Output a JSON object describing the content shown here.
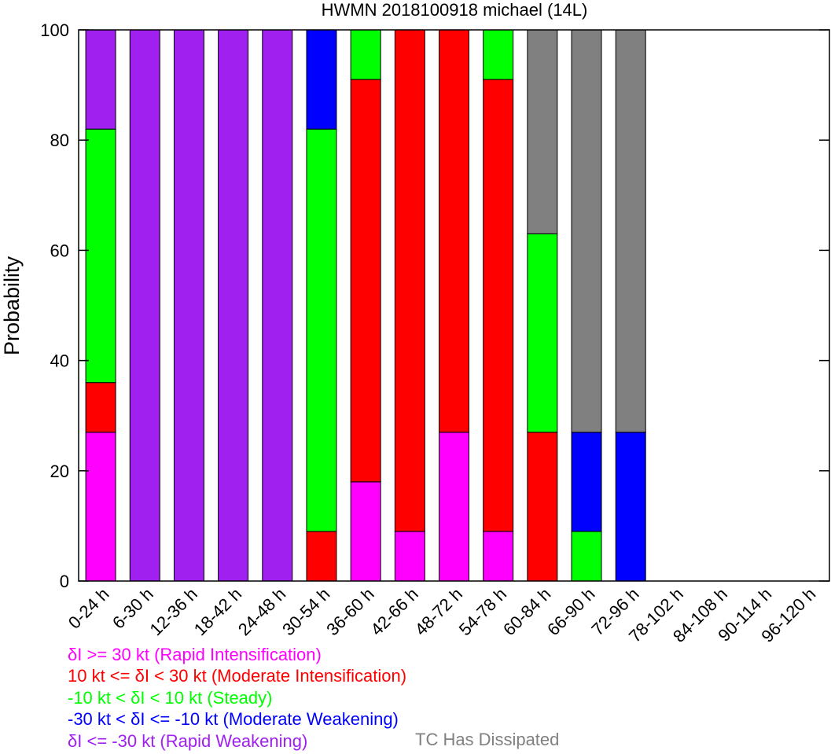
{
  "chart_data": {
    "type": "bar",
    "stacked": true,
    "title": "HWMN 2018100918 michael (14L)",
    "ylabel": "Probability",
    "xlabel": "",
    "ylim": [
      0,
      100
    ],
    "yticks": [
      0,
      20,
      40,
      60,
      80,
      100
    ],
    "grid": false,
    "categories": [
      "0-24 h",
      "6-30 h",
      "12-36 h",
      "18-42 h",
      "24-48 h",
      "30-54 h",
      "36-60 h",
      "42-66 h",
      "48-72 h",
      "54-78 h",
      "60-84 h",
      "66-90 h",
      "72-96 h",
      "78-102 h",
      "84-108 h",
      "90-114 h",
      "96-120 h"
    ],
    "series": [
      {
        "name": "δI >= 30 kt (Rapid Intensification)",
        "color": "#ff00ff",
        "values": [
          27,
          0,
          0,
          0,
          0,
          0,
          18,
          9,
          27,
          9,
          0,
          0,
          0,
          0,
          0,
          0,
          0
        ]
      },
      {
        "name": "10 kt <= δI < 30 kt (Moderate Intensification)",
        "color": "#ff0000",
        "values": [
          9,
          0,
          0,
          0,
          0,
          9,
          73,
          91,
          73,
          82,
          27,
          0,
          0,
          0,
          0,
          0,
          0
        ]
      },
      {
        "name": "-10 kt < δI < 10 kt (Steady)",
        "color": "#00ff00",
        "values": [
          46,
          0,
          0,
          0,
          0,
          73,
          9,
          0,
          0,
          9,
          36,
          9,
          0,
          0,
          0,
          0,
          0
        ]
      },
      {
        "name": "-30 kt < δI <= -10 kt (Moderate Weakening)",
        "color": "#0000ff",
        "values": [
          0,
          0,
          0,
          0,
          0,
          18,
          0,
          0,
          0,
          0,
          0,
          18,
          27,
          0,
          0,
          0,
          0
        ]
      },
      {
        "name": "δI <= -30 kt (Rapid Weakening)",
        "color": "#a020f0",
        "values": [
          18,
          100,
          100,
          100,
          100,
          0,
          0,
          0,
          0,
          0,
          0,
          0,
          0,
          0,
          0,
          0,
          0
        ]
      },
      {
        "name": "TC Has Dissipated",
        "color": "#808080",
        "values": [
          0,
          0,
          0,
          0,
          0,
          0,
          0,
          0,
          0,
          0,
          37,
          73,
          73,
          0,
          0,
          0,
          0
        ]
      }
    ]
  }
}
